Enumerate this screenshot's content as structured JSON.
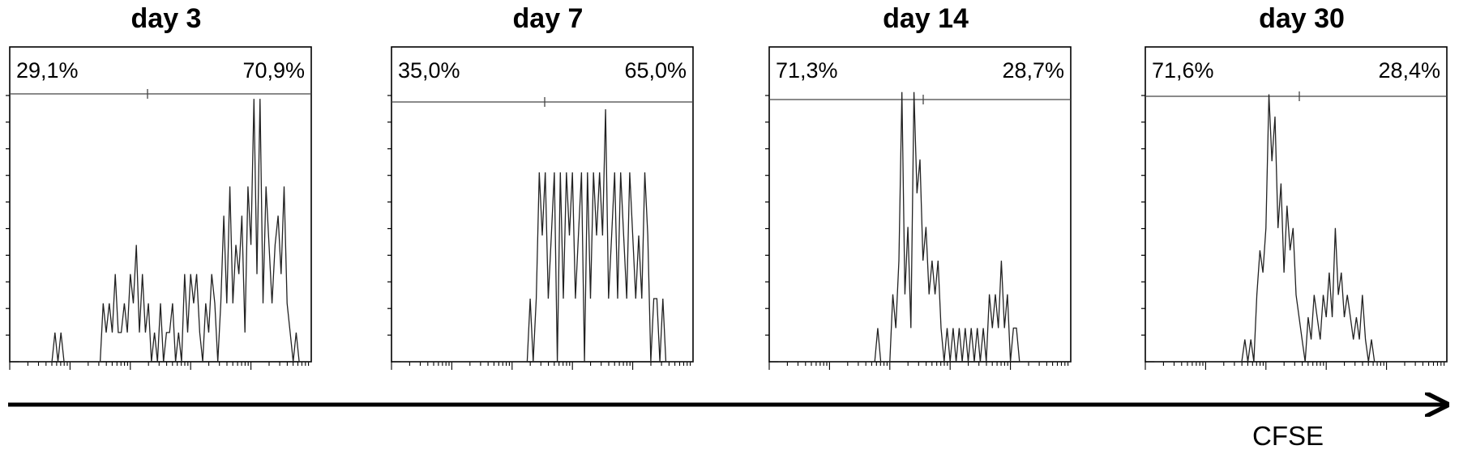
{
  "chart_data": [
    {
      "type": "area",
      "title": "day 3",
      "gate": {
        "left_label": "29,1%",
        "right_label": "70,9%"
      },
      "x": [
        3,
        4,
        5,
        6,
        7,
        8,
        9,
        10,
        11,
        12,
        13,
        14,
        15,
        16,
        17,
        18,
        19,
        20,
        21,
        22,
        23,
        24,
        25,
        26,
        27,
        28,
        29,
        30,
        31,
        32,
        33,
        34,
        35,
        36,
        37,
        38,
        39,
        40,
        41,
        42,
        43,
        44,
        45,
        46,
        47,
        48,
        49,
        50,
        51,
        52,
        53,
        54,
        55,
        56,
        57,
        58,
        59,
        60,
        61,
        62,
        63,
        64,
        65,
        66,
        67,
        68,
        69,
        70,
        71,
        72,
        73,
        74,
        75,
        76,
        77,
        78,
        79,
        80,
        81,
        82,
        83,
        84,
        85,
        86,
        87,
        88,
        89,
        90,
        91,
        92,
        93,
        94,
        95,
        96,
        97,
        98,
        99,
        100
      ],
      "values": [
        0,
        0,
        0,
        0,
        0,
        0,
        0,
        0,
        0,
        0,
        0,
        0,
        1,
        0,
        1,
        0,
        0,
        0,
        0,
        0,
        0,
        0,
        0,
        0,
        0,
        0,
        0,
        0,
        2,
        1,
        2,
        1,
        3,
        1,
        1,
        2,
        1,
        3,
        2,
        4,
        1,
        3,
        1,
        2,
        0,
        1,
        0,
        2,
        0,
        1,
        1,
        2,
        0,
        1,
        0,
        3,
        1,
        3,
        2,
        3,
        1,
        0,
        2,
        1,
        3,
        2,
        0,
        2,
        5,
        2,
        6,
        2,
        4,
        3,
        5,
        1,
        6,
        4,
        9,
        3,
        9,
        2,
        6,
        4,
        2,
        4,
        5,
        3,
        6,
        2,
        1,
        0,
        1,
        0,
        0,
        0,
        0,
        0
      ],
      "ylim": [
        0,
        10
      ]
    },
    {
      "type": "area",
      "title": "day 7",
      "gate": {
        "left_label": "35,0%",
        "right_label": "65,0%"
      },
      "x": [
        3,
        4,
        5,
        6,
        7,
        8,
        9,
        10,
        11,
        12,
        13,
        14,
        15,
        16,
        17,
        18,
        19,
        20,
        21,
        22,
        23,
        24,
        25,
        26,
        27,
        28,
        29,
        30,
        31,
        32,
        33,
        34,
        35,
        36,
        37,
        38,
        39,
        40,
        41,
        42,
        43,
        44,
        45,
        46,
        47,
        48,
        49,
        50,
        51,
        52,
        53,
        54,
        55,
        56,
        57,
        58,
        59,
        60,
        61,
        62,
        63,
        64,
        65,
        66,
        67,
        68,
        69,
        70,
        71,
        72,
        73,
        74,
        75,
        76,
        77,
        78,
        79,
        80,
        81,
        82,
        83,
        84,
        85,
        86,
        87,
        88,
        89,
        90,
        91,
        92,
        93,
        94,
        95,
        96,
        97,
        98,
        99,
        100
      ],
      "values": [
        0,
        0,
        0,
        0,
        0,
        0,
        0,
        0,
        0,
        0,
        0,
        0,
        0,
        0,
        0,
        0,
        0,
        0,
        0,
        0,
        0,
        0,
        0,
        0,
        0,
        0,
        0,
        0,
        0,
        0,
        0,
        0,
        0,
        0,
        0,
        0,
        0,
        0,
        0,
        0,
        0,
        0,
        0,
        1,
        0,
        1,
        3,
        2,
        3,
        1,
        2,
        3,
        0,
        3,
        1,
        3,
        2,
        3,
        1,
        2,
        3,
        0,
        3,
        1,
        3,
        2,
        3,
        2,
        4,
        1,
        2,
        3,
        1,
        3,
        2,
        1,
        3,
        2,
        1,
        2,
        1,
        3,
        2,
        0,
        1,
        1,
        0,
        1,
        0,
        0,
        0,
        0,
        0,
        0,
        0,
        0,
        0,
        0
      ],
      "ylim": [
        0,
        4.5
      ]
    },
    {
      "type": "area",
      "title": "day 14",
      "gate": {
        "left_label": "71,3%",
        "right_label": "28,7%"
      },
      "x": [
        3,
        4,
        5,
        6,
        7,
        8,
        9,
        10,
        11,
        12,
        13,
        14,
        15,
        16,
        17,
        18,
        19,
        20,
        21,
        22,
        23,
        24,
        25,
        26,
        27,
        28,
        29,
        30,
        31,
        32,
        33,
        34,
        35,
        36,
        37,
        38,
        39,
        40,
        41,
        42,
        43,
        44,
        45,
        46,
        47,
        48,
        49,
        50,
        51,
        52,
        53,
        54,
        55,
        56,
        57,
        58,
        59,
        60,
        61,
        62,
        63,
        64,
        65,
        66,
        67,
        68,
        69,
        70,
        71,
        72,
        73,
        74,
        75,
        76,
        77,
        78,
        79,
        80,
        81,
        82,
        83,
        84,
        85,
        86,
        87,
        88,
        89,
        90,
        91,
        92,
        93,
        94,
        95,
        96,
        97,
        98,
        99,
        100
      ],
      "values": [
        0,
        0,
        0,
        0,
        0,
        0,
        0,
        0,
        0,
        0,
        0,
        0,
        0,
        0,
        0,
        0,
        0,
        0,
        0,
        0,
        0,
        0,
        0,
        0,
        0,
        0,
        0,
        0,
        0,
        0,
        0,
        0,
        0,
        1,
        0,
        0,
        0,
        0,
        2,
        1,
        3,
        8,
        2,
        4,
        1,
        8,
        5,
        6,
        3,
        4,
        2,
        3,
        2,
        3,
        1,
        0,
        1,
        0,
        1,
        0,
        1,
        0,
        1,
        0,
        1,
        0,
        1,
        0,
        1,
        0,
        2,
        1,
        2,
        1,
        3,
        1,
        2,
        0,
        1,
        1,
        0,
        0,
        0,
        0,
        0,
        0,
        0,
        0,
        0,
        0,
        0,
        0,
        0,
        0,
        0,
        0,
        0,
        0
      ],
      "ylim": [
        0,
        8.5
      ]
    },
    {
      "type": "area",
      "title": "day 30",
      "gate": {
        "left_label": "71,6%",
        "right_label": "28,4%"
      },
      "x": [
        3,
        4,
        5,
        6,
        7,
        8,
        9,
        10,
        11,
        12,
        13,
        14,
        15,
        16,
        17,
        18,
        19,
        20,
        21,
        22,
        23,
        24,
        25,
        26,
        27,
        28,
        29,
        30,
        31,
        32,
        33,
        34,
        35,
        36,
        37,
        38,
        39,
        40,
        41,
        42,
        43,
        44,
        45,
        46,
        47,
        48,
        49,
        50,
        51,
        52,
        53,
        54,
        55,
        56,
        57,
        58,
        59,
        60,
        61,
        62,
        63,
        64,
        65,
        66,
        67,
        68,
        69,
        70,
        71,
        72,
        73,
        74,
        75,
        76,
        77,
        78,
        79,
        80,
        81,
        82,
        83,
        84,
        85,
        86,
        87,
        88,
        89,
        90,
        91,
        92,
        93,
        94,
        95,
        96,
        97,
        98,
        99,
        100
      ],
      "values": [
        0,
        0,
        0,
        0,
        0,
        0,
        0,
        0,
        0,
        0,
        0,
        0,
        0,
        0,
        0,
        0,
        0,
        0,
        0,
        0,
        0,
        0,
        0,
        0,
        0,
        0,
        0,
        0,
        0,
        0,
        1,
        0,
        1,
        0,
        3,
        5,
        4,
        6,
        12,
        9,
        11,
        6,
        8,
        4,
        7,
        5,
        6,
        3,
        2,
        1,
        0,
        2,
        1,
        3,
        2,
        1,
        3,
        2,
        4,
        2,
        6,
        3,
        4,
        2,
        3,
        2,
        1,
        2,
        1,
        3,
        1,
        0,
        1,
        0,
        0,
        0,
        0,
        0,
        0,
        0,
        0,
        0,
        0,
        0,
        0,
        0,
        0,
        0,
        0,
        0,
        0,
        0,
        0,
        0,
        0,
        0,
        0,
        0
      ],
      "ylim": [
        0,
        13
      ]
    }
  ],
  "axis": {
    "x_caption": "CFSE"
  }
}
